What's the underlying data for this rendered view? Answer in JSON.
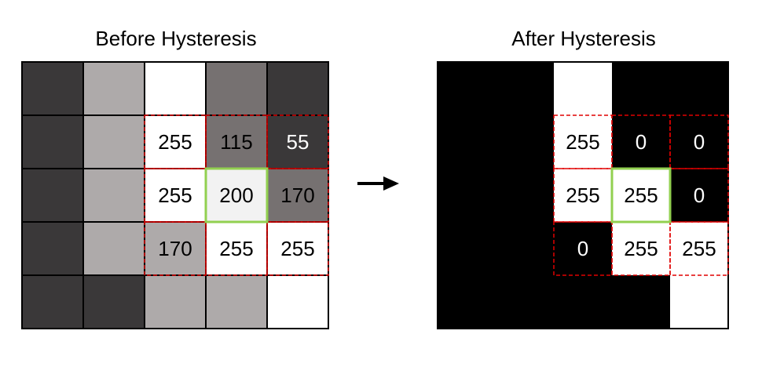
{
  "left_title": "Before Hysteresis",
  "right_title": "After Hysteresis",
  "colors": {
    "dark": "#3a3839",
    "light_gray": "#aeaaaa",
    "mid_gray": "#767171",
    "very_light": "#f2f2f2",
    "white": "#ffffff",
    "black": "#000000",
    "neighbor_outline": "#e00000",
    "center_outline": "#92d050"
  },
  "before_grid": [
    [
      {
        "fill": "dark",
        "label": ""
      },
      {
        "fill": "light_gray",
        "label": ""
      },
      {
        "fill": "white",
        "label": ""
      },
      {
        "fill": "mid_gray",
        "label": ""
      },
      {
        "fill": "dark",
        "label": ""
      }
    ],
    [
      {
        "fill": "dark",
        "label": ""
      },
      {
        "fill": "light_gray",
        "label": ""
      },
      {
        "fill": "white",
        "label": "255"
      },
      {
        "fill": "mid_gray",
        "label": "115"
      },
      {
        "fill": "dark",
        "label": "55"
      }
    ],
    [
      {
        "fill": "dark",
        "label": ""
      },
      {
        "fill": "light_gray",
        "label": ""
      },
      {
        "fill": "white",
        "label": "255"
      },
      {
        "fill": "very_light",
        "label": "200"
      },
      {
        "fill": "mid_gray",
        "label": "170"
      }
    ],
    [
      {
        "fill": "dark",
        "label": ""
      },
      {
        "fill": "light_gray",
        "label": ""
      },
      {
        "fill": "light_gray",
        "label": "170"
      },
      {
        "fill": "white",
        "label": "255"
      },
      {
        "fill": "white",
        "label": "255"
      }
    ],
    [
      {
        "fill": "dark",
        "label": ""
      },
      {
        "fill": "dark",
        "label": ""
      },
      {
        "fill": "light_gray",
        "label": ""
      },
      {
        "fill": "light_gray",
        "label": ""
      },
      {
        "fill": "white",
        "label": ""
      }
    ]
  ],
  "after_grid": [
    [
      {
        "fill": "black",
        "label": ""
      },
      {
        "fill": "black",
        "label": ""
      },
      {
        "fill": "white",
        "label": ""
      },
      {
        "fill": "black",
        "label": ""
      },
      {
        "fill": "black",
        "label": ""
      }
    ],
    [
      {
        "fill": "black",
        "label": ""
      },
      {
        "fill": "black",
        "label": ""
      },
      {
        "fill": "white",
        "label": "255"
      },
      {
        "fill": "black",
        "label": "0"
      },
      {
        "fill": "black",
        "label": "0"
      }
    ],
    [
      {
        "fill": "black",
        "label": ""
      },
      {
        "fill": "black",
        "label": ""
      },
      {
        "fill": "white",
        "label": "255"
      },
      {
        "fill": "white",
        "label": "255"
      },
      {
        "fill": "black",
        "label": "0"
      }
    ],
    [
      {
        "fill": "black",
        "label": ""
      },
      {
        "fill": "black",
        "label": ""
      },
      {
        "fill": "black",
        "label": "0"
      },
      {
        "fill": "white",
        "label": "255"
      },
      {
        "fill": "white",
        "label": "255"
      }
    ],
    [
      {
        "fill": "black",
        "label": ""
      },
      {
        "fill": "black",
        "label": ""
      },
      {
        "fill": "black",
        "label": ""
      },
      {
        "fill": "black",
        "label": ""
      },
      {
        "fill": "white",
        "label": ""
      }
    ]
  ],
  "center_cell": [
    2,
    3
  ]
}
